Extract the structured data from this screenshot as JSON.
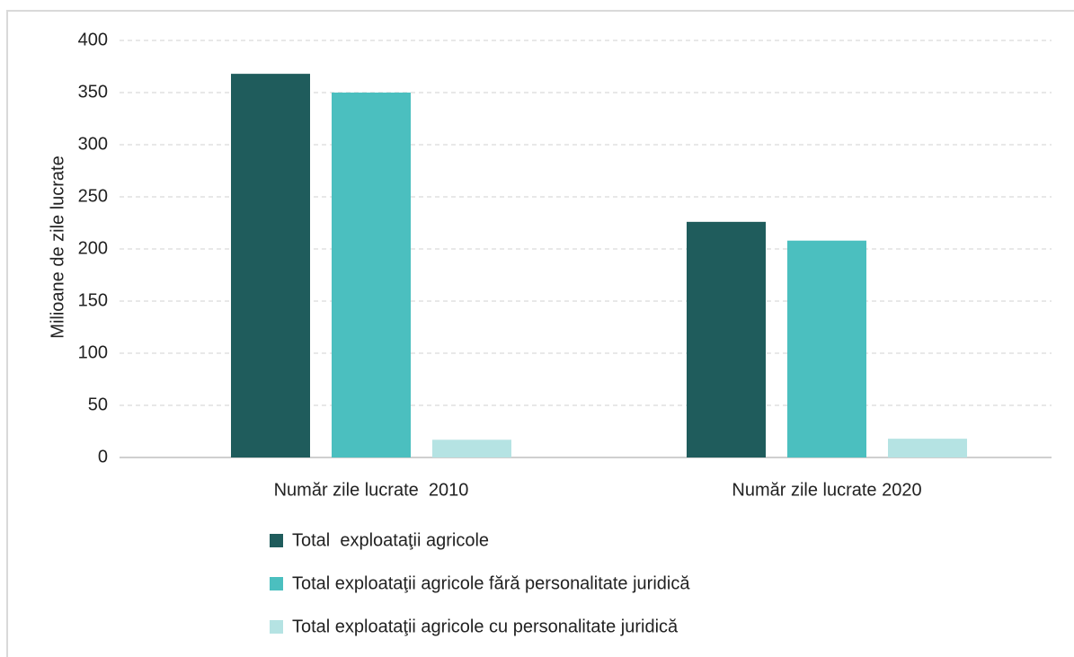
{
  "chart_data": {
    "type": "bar",
    "y_label": "Milioane de zile lucrate",
    "categories": [
      "Număr zile lucrate  2010",
      "Număr zile lucrate 2020"
    ],
    "series": [
      {
        "name": "Total  exploataţii agricole",
        "color": "#1f5c5c",
        "values": [
          368,
          226
        ]
      },
      {
        "name": "Total exploataţii agricole fără personalitate juridică",
        "color": "#4bbfbf",
        "values": [
          350,
          208
        ]
      },
      {
        "name": "Total exploataţii agricole cu personalitate juridică",
        "color": "#b5e3e3",
        "values": [
          17,
          18
        ]
      }
    ],
    "ylim": [
      0,
      400
    ],
    "yticks": [
      0,
      50,
      100,
      150,
      200,
      250,
      300,
      350,
      400
    ],
    "grid": true,
    "legend": "bottom"
  }
}
